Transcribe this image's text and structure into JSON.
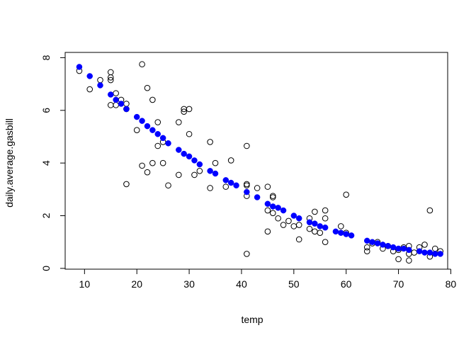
{
  "chart_data": {
    "type": "scatter",
    "title": "",
    "xlabel": "temp",
    "ylabel": "daily.average.gasbill",
    "xlim": [
      5,
      80
    ],
    "ylim": [
      0,
      8
    ],
    "xticks": [
      10,
      20,
      30,
      40,
      50,
      60,
      70,
      80
    ],
    "yticks": [
      0,
      2,
      4,
      6,
      8
    ],
    "grid": false,
    "legend": "none",
    "colors": {
      "observed": "#000000",
      "fitted": "#0000ff"
    },
    "series": [
      {
        "marker": "open-circle",
        "color": "#000000",
        "x": [
          9,
          11,
          13,
          15,
          15,
          15,
          15,
          16,
          16,
          17,
          18,
          18,
          18,
          20,
          21,
          21,
          22,
          22,
          23,
          23,
          24,
          24,
          25,
          25,
          26,
          28,
          28,
          29,
          29,
          30,
          30,
          31,
          32,
          34,
          34,
          35,
          37,
          38,
          41,
          41,
          41,
          41,
          41,
          43,
          45,
          45,
          45,
          46,
          46,
          46,
          47,
          48,
          49,
          50,
          51,
          51,
          53,
          53,
          54,
          54,
          55,
          56,
          56,
          56,
          59,
          60,
          60,
          64,
          64,
          65,
          66,
          67,
          68,
          69,
          70,
          70,
          71,
          72,
          72,
          72,
          73,
          74,
          75,
          76,
          76,
          77,
          78
        ],
        "y": [
          7.5,
          6.8,
          7.15,
          7.45,
          7.25,
          7.15,
          6.2,
          6.65,
          6.2,
          6.4,
          6.25,
          6.05,
          3.2,
          5.25,
          7.75,
          3.9,
          6.85,
          3.65,
          6.4,
          4.0,
          5.55,
          4.65,
          4.8,
          4.0,
          3.15,
          5.55,
          3.55,
          6.05,
          5.95,
          6.05,
          5.1,
          3.55,
          3.7,
          4.8,
          3.05,
          4.0,
          3.1,
          4.1,
          4.65,
          3.2,
          3.15,
          2.75,
          0.55,
          3.05,
          3.1,
          2.2,
          1.4,
          2.75,
          2.7,
          2.1,
          1.9,
          1.65,
          1.8,
          1.6,
          1.65,
          1.1,
          1.9,
          1.5,
          2.15,
          1.4,
          1.35,
          2.2,
          1.9,
          1.0,
          1.6,
          2.8,
          1.35,
          0.8,
          0.65,
          0.95,
          1.0,
          0.75,
          0.85,
          0.65,
          0.7,
          0.35,
          0.8,
          0.85,
          0.55,
          0.3,
          0.6,
          0.8,
          0.9,
          2.2,
          0.45,
          0.75,
          0.65
        ]
      },
      {
        "marker": "filled-circle",
        "color": "#0000ff",
        "x": [
          9,
          11,
          13,
          15,
          16,
          17,
          18,
          20,
          21,
          22,
          23,
          24,
          25,
          26,
          28,
          29,
          30,
          31,
          32,
          34,
          35,
          37,
          38,
          39,
          41,
          43,
          45,
          46,
          47,
          48,
          50,
          51,
          53,
          54,
          55,
          56,
          58,
          59,
          60,
          61,
          64,
          65,
          66,
          67,
          68,
          69,
          70,
          71,
          72,
          74,
          75,
          76,
          77,
          78
        ],
        "y": [
          7.65,
          7.3,
          6.95,
          6.6,
          6.4,
          6.25,
          6.05,
          5.75,
          5.6,
          5.4,
          5.25,
          5.1,
          4.95,
          4.75,
          4.5,
          4.35,
          4.25,
          4.1,
          3.95,
          3.7,
          3.6,
          3.35,
          3.25,
          3.15,
          2.9,
          2.7,
          2.45,
          2.35,
          2.3,
          2.2,
          2.0,
          1.9,
          1.75,
          1.7,
          1.6,
          1.55,
          1.4,
          1.35,
          1.3,
          1.25,
          1.05,
          1.0,
          0.95,
          0.9,
          0.85,
          0.8,
          0.75,
          0.75,
          0.7,
          0.65,
          0.6,
          0.6,
          0.55,
          0.55
        ]
      }
    ]
  }
}
